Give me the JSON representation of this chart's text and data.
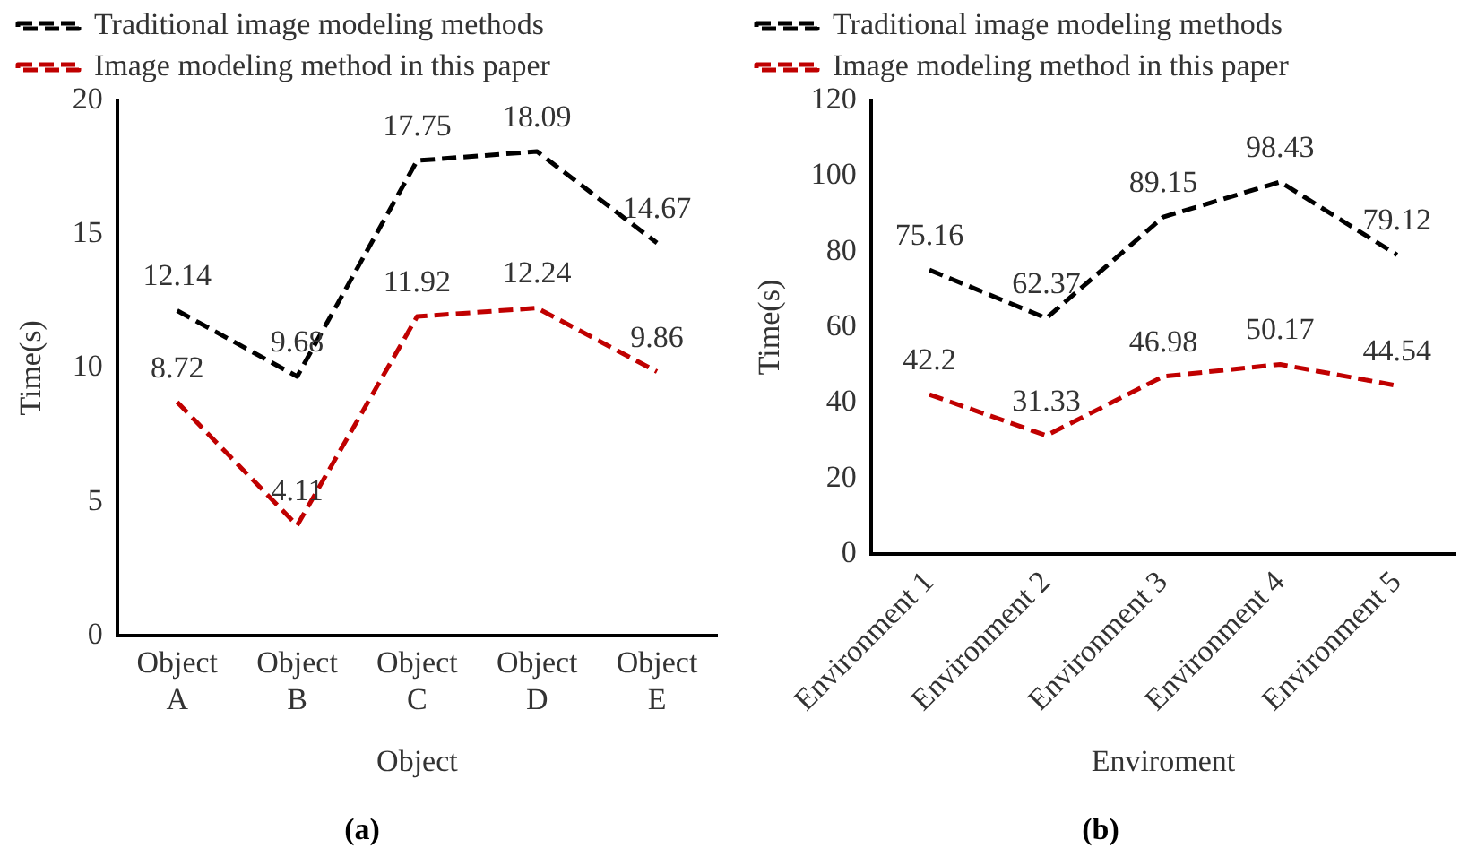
{
  "chart_data": [
    {
      "type": "line",
      "title": "(a)",
      "xlabel": "Object",
      "ylabel": "Time(s)",
      "categories": [
        "Object A",
        "Object B",
        "Object C",
        "Object D",
        "Object E"
      ],
      "series": [
        {
          "name": "Traditional image modeling methods",
          "color": "#000000",
          "line_style": "dashed",
          "values": [
            12.14,
            9.68,
            17.75,
            18.09,
            14.67
          ]
        },
        {
          "name": "Image modeling method in this paper",
          "color": "#c00000",
          "line_style": "dashed",
          "values": [
            8.72,
            4.11,
            11.92,
            12.24,
            9.86
          ]
        }
      ],
      "ylim": [
        0,
        20
      ],
      "yticks": [
        0,
        5,
        10,
        15,
        20
      ],
      "grid": false,
      "legend": "top",
      "data_labels": true,
      "marker": "none"
    },
    {
      "type": "line",
      "title": "(b)",
      "xlabel": "Enviroment",
      "ylabel": "Time(s)",
      "categories": [
        "Environment 1",
        "Environment 2",
        "Environment 3",
        "Environment 4",
        "Environment 5"
      ],
      "series": [
        {
          "name": "Traditional image modeling methods",
          "color": "#000000",
          "line_style": "dashed",
          "values": [
            75.16,
            62.37,
            89.15,
            98.43,
            79.12
          ]
        },
        {
          "name": "Image modeling method in this paper",
          "color": "#c00000",
          "line_style": "dashed",
          "values": [
            42.2,
            31.33,
            46.98,
            50.17,
            44.54
          ]
        }
      ],
      "ylim": [
        0,
        120
      ],
      "yticks": [
        0,
        20,
        40,
        60,
        80,
        100,
        120
      ],
      "grid": false,
      "legend": "top",
      "data_labels": true,
      "marker": "none"
    }
  ]
}
